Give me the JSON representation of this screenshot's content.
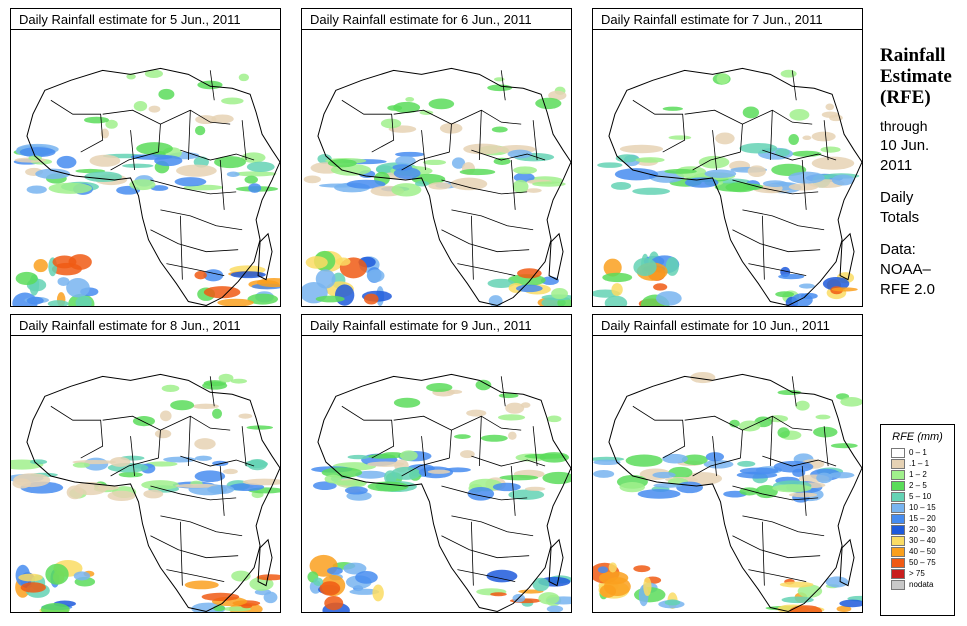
{
  "panels": [
    {
      "title": "Daily Rainfall estimate for  5 Jun., 2011"
    },
    {
      "title": "Daily Rainfall estimate for  6 Jun., 2011"
    },
    {
      "title": "Daily Rainfall estimate for  7 Jun., 2011"
    },
    {
      "title": "Daily Rainfall estimate for  8 Jun., 2011"
    },
    {
      "title": "Daily Rainfall estimate for  9 Jun., 2011"
    },
    {
      "title": "Daily Rainfall estimate for  10 Jun., 2011"
    }
  ],
  "side": {
    "title_lines": [
      "Rainfall",
      "Estimate",
      "(RFE)"
    ],
    "through_lines": [
      "through",
      "10 Jun.",
      "2011"
    ],
    "daily_lines": [
      "Daily",
      "Totals"
    ],
    "data_lines": [
      "Data:",
      "NOAA–",
      "RFE 2.0"
    ]
  },
  "legend": {
    "title": "RFE (mm)",
    "items": [
      {
        "label": "0 – 1",
        "color": "#ffffff"
      },
      {
        "label": ".1 – 1",
        "color": "#e6d2b4"
      },
      {
        "label": "1 – 2",
        "color": "#a0f08c"
      },
      {
        "label": "2 – 5",
        "color": "#5adc5a"
      },
      {
        "label": "5 – 10",
        "color": "#64d2b4"
      },
      {
        "label": "10 – 15",
        "color": "#78b4f0"
      },
      {
        "label": "15 – 20",
        "color": "#468cf0"
      },
      {
        "label": "20 – 30",
        "color": "#1e5adc"
      },
      {
        "label": "30 – 40",
        "color": "#fadc64"
      },
      {
        "label": "40 – 50",
        "color": "#faa01e"
      },
      {
        "label": "50 – 75",
        "color": "#f05a14"
      },
      {
        "label": "> 75",
        "color": "#c81e1e"
      },
      {
        "label": "nodata",
        "color": "#c8c8c8"
      }
    ]
  }
}
